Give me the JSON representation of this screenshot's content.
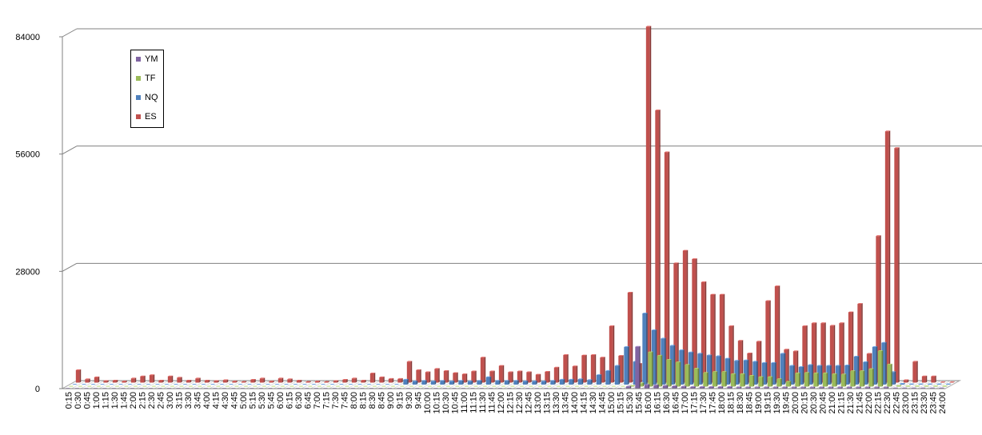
{
  "chart_data": {
    "type": "bar",
    "ylim": [
      0,
      84000
    ],
    "yticks": [
      0,
      28000,
      56000,
      84000
    ],
    "ytick_labels": [
      "0",
      "28000",
      "56000",
      "84000"
    ],
    "legend_position": "top-left",
    "categories": [
      "0:15",
      "0:30",
      "0:45",
      "1:00",
      "1:15",
      "1:30",
      "1:45",
      "2:00",
      "2:15",
      "2:30",
      "2:45",
      "3:00",
      "3:15",
      "3:30",
      "3:45",
      "4:00",
      "4:15",
      "4:30",
      "4:45",
      "5:00",
      "5:15",
      "5:30",
      "5:45",
      "6:00",
      "6:15",
      "6:30",
      "6:45",
      "7:00",
      "7:15",
      "7:30",
      "7:45",
      "8:00",
      "8:15",
      "8:30",
      "8:45",
      "9:00",
      "9:15",
      "9:30",
      "9:45",
      "10:00",
      "10:15",
      "10:30",
      "10:45",
      "11:00",
      "11:15",
      "11:30",
      "11:45",
      "12:00",
      "12:15",
      "12:30",
      "12:45",
      "13:00",
      "13:15",
      "13:30",
      "13:45",
      "14:00",
      "14:15",
      "14:30",
      "14:45",
      "15:00",
      "15:15",
      "15:30",
      "15:45",
      "16:00",
      "16:15",
      "16:30",
      "16:45",
      "17:00",
      "17:15",
      "17:30",
      "17:45",
      "18:00",
      "18:15",
      "18:30",
      "18:45",
      "19:00",
      "19:15",
      "19:30",
      "19:45",
      "20:00",
      "20:15",
      "20:30",
      "20:45",
      "21:00",
      "21:15",
      "21:30",
      "21:45",
      "22:00",
      "22:15",
      "22:30",
      "22:45",
      "23:00",
      "23:15",
      "23:30",
      "23:45",
      "24:00"
    ],
    "series": [
      {
        "name": "ES",
        "color": "#c0504d",
        "values": [
          3000,
          800,
          1300,
          400,
          500,
          300,
          1000,
          1500,
          1800,
          500,
          1500,
          1200,
          500,
          1000,
          500,
          400,
          600,
          300,
          200,
          700,
          1000,
          300,
          1000,
          800,
          500,
          200,
          300,
          200,
          400,
          700,
          1000,
          500,
          2200,
          1300,
          900,
          900,
          5000,
          3000,
          2500,
          3300,
          2800,
          2300,
          2000,
          2700,
          6000,
          2700,
          4000,
          2500,
          2700,
          2500,
          1900,
          2600,
          3600,
          6600,
          3900,
          6500,
          6600,
          6000,
          13500,
          6400,
          21500,
          4500,
          85000,
          65000,
          55000,
          28500,
          31500,
          29500,
          24000,
          21000,
          21000,
          13500,
          10000,
          7000,
          9800,
          19500,
          23000,
          7900,
          7500,
          13500,
          14200,
          14200,
          13600,
          14200,
          16800,
          18800,
          6900,
          35000,
          60000,
          56000,
          600,
          5000,
          1500,
          1500,
          100,
          100
        ]
      },
      {
        "name": "NQ",
        "color": "#4f81bd",
        "values": [
          0,
          0,
          0,
          0,
          0,
          0,
          0,
          0,
          0,
          0,
          0,
          0,
          0,
          0,
          0,
          0,
          0,
          0,
          0,
          0,
          0,
          0,
          0,
          0,
          0,
          0,
          0,
          0,
          0,
          0,
          0,
          0,
          0,
          0,
          0,
          0,
          1200,
          800,
          900,
          800,
          900,
          800,
          900,
          800,
          900,
          1800,
          900,
          900,
          900,
          800,
          800,
          800,
          900,
          1200,
          1200,
          1300,
          1100,
          2300,
          3300,
          4500,
          9000,
          5500,
          17000,
          13000,
          11000,
          9300,
          8200,
          7700,
          7400,
          7000,
          6800,
          6200,
          5700,
          5800,
          5500,
          5200,
          5200,
          7400,
          4500,
          4200,
          4700,
          4500,
          4500,
          4500,
          4600,
          6700,
          5400,
          9000,
          10000,
          3000,
          200,
          100,
          100,
          100,
          100,
          100
        ]
      },
      {
        "name": "TF",
        "color": "#9bbb59",
        "values": [
          0,
          0,
          0,
          0,
          0,
          0,
          0,
          0,
          0,
          0,
          0,
          0,
          0,
          0,
          0,
          0,
          0,
          0,
          0,
          0,
          0,
          0,
          0,
          0,
          0,
          0,
          0,
          0,
          0,
          0,
          0,
          0,
          0,
          0,
          0,
          0,
          0,
          0,
          0,
          0,
          0,
          0,
          0,
          0,
          0,
          0,
          0,
          0,
          0,
          0,
          0,
          0,
          0,
          0,
          0,
          0,
          0,
          0,
          0,
          0,
          0,
          200,
          800,
          8200,
          7400,
          6400,
          5800,
          5200,
          4300,
          3300,
          3500,
          3500,
          3000,
          3000,
          2600,
          2300,
          2300,
          1800,
          1200,
          3200,
          3300,
          3200,
          3200,
          3000,
          2900,
          3700,
          3700,
          4200,
          8500,
          5300,
          200,
          100,
          100,
          100,
          100,
          100
        ]
      },
      {
        "name": "YM",
        "color": "#8064a2",
        "values": [
          0,
          0,
          0,
          0,
          0,
          0,
          0,
          0,
          0,
          0,
          0,
          0,
          0,
          0,
          0,
          0,
          0,
          0,
          0,
          0,
          0,
          0,
          0,
          0,
          0,
          0,
          0,
          0,
          0,
          0,
          0,
          0,
          0,
          0,
          0,
          0,
          0,
          0,
          0,
          0,
          0,
          0,
          0,
          0,
          0,
          0,
          0,
          0,
          0,
          0,
          0,
          0,
          0,
          0,
          0,
          0,
          0,
          0,
          0,
          0,
          0,
          500,
          10000,
          900,
          800,
          700,
          600,
          500,
          400,
          400,
          400,
          400,
          400,
          300,
          300,
          300,
          300,
          300,
          300,
          300,
          300,
          300,
          300,
          300,
          300,
          300,
          300,
          300,
          300,
          300,
          100,
          100,
          100,
          100,
          100,
          100
        ]
      }
    ],
    "legend": [
      {
        "name": "YM",
        "color": "#8064a2"
      },
      {
        "name": "TF",
        "color": "#9bbb59"
      },
      {
        "name": "NQ",
        "color": "#4f81bd"
      },
      {
        "name": "ES",
        "color": "#c0504d"
      }
    ]
  }
}
